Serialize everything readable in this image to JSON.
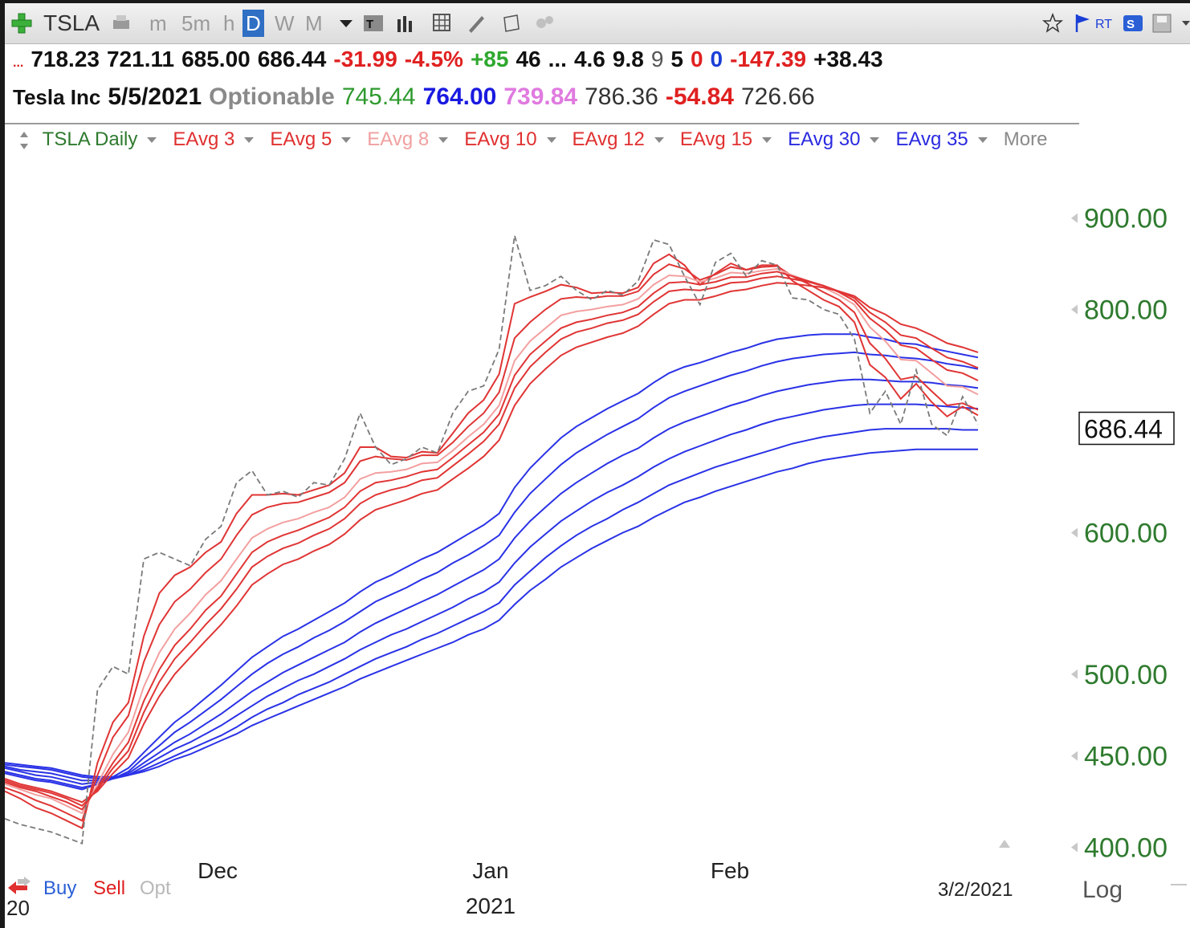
{
  "toolbar": {
    "symbol": "TSLA",
    "timeframes": [
      "m",
      "5m",
      "h",
      "D",
      "W",
      "M"
    ],
    "selected": "D",
    "rt_label": "RT"
  },
  "quote": {
    "row1": [
      {
        "text": "...",
        "color": "#d62020"
      },
      {
        "text": "718.23",
        "color": "#111111"
      },
      {
        "text": "721.11",
        "color": "#111111"
      },
      {
        "text": "685.00",
        "color": "#111111"
      },
      {
        "text": "686.44",
        "color": "#111111"
      },
      {
        "text": "-31.99",
        "color": "#e02020"
      },
      {
        "text": "-4.5%",
        "color": "#e02020"
      },
      {
        "text": "+85",
        "color": "#2ea82e"
      },
      {
        "text": "46",
        "color": "#111111"
      },
      {
        "text": "...",
        "color": "#111111"
      },
      {
        "text": "4.6",
        "color": "#111111"
      },
      {
        "text": "9.8",
        "color": "#111111"
      },
      {
        "text": "9",
        "color": "#555555"
      },
      {
        "text": "5",
        "color": "#111111"
      },
      {
        "text": "0",
        "color": "#e02020"
      },
      {
        "text": "0",
        "color": "#1a3fd6"
      },
      {
        "text": "-147.39",
        "color": "#e02020"
      },
      {
        "text": "+38.43",
        "color": "#111111"
      }
    ],
    "row2": [
      {
        "text": "Tesla Inc",
        "color": "#111111"
      },
      {
        "text": "5/5/2021",
        "color": "#111111"
      },
      {
        "text": "Optionable",
        "color": "#8a8a8a"
      },
      {
        "text": "745.44",
        "color": "#2e9a2e"
      },
      {
        "text": "764.00",
        "color": "#1a1ae0"
      },
      {
        "text": "739.84",
        "color": "#e07ae0"
      },
      {
        "text": "786.36",
        "color": "#333333"
      },
      {
        "text": "-54.84",
        "color": "#e02020"
      },
      {
        "text": "726.66",
        "color": "#333333"
      }
    ]
  },
  "indicators": [
    {
      "label": "TSLA Daily",
      "color": "#2e7a2e"
    },
    {
      "label": "EAvg 3",
      "color": "#e03030"
    },
    {
      "label": "EAvg 5",
      "color": "#e03030"
    },
    {
      "label": "EAvg 8",
      "color": "#f0a0a0"
    },
    {
      "label": "EAvg 10",
      "color": "#e03030"
    },
    {
      "label": "EAvg 12",
      "color": "#e03030"
    },
    {
      "label": "EAvg 15",
      "color": "#e03030"
    },
    {
      "label": "EAvg 30",
      "color": "#2a2ae0"
    },
    {
      "label": "EAvg 35",
      "color": "#2a2ae0"
    },
    {
      "label": "More",
      "color": "#8a8a8a"
    }
  ],
  "chart_data": {
    "type": "line",
    "scale": "log",
    "yticks": [
      "900.00",
      "800.00",
      "600.00",
      "500.00",
      "450.00",
      "400.00"
    ],
    "ylim": [
      390,
      930
    ],
    "last_price": "686.44",
    "x_labels": [
      "Dec",
      "Jan",
      "Feb"
    ],
    "year_label": "2021",
    "start_label": "20",
    "date_label": "3/2/2021",
    "scale_label": "Log",
    "close": [
      415,
      412,
      410,
      408,
      405,
      402,
      490,
      505,
      500,
      580,
      585,
      580,
      575,
      595,
      605,
      640,
      650,
      630,
      633,
      628,
      640,
      638,
      660,
      700,
      670,
      655,
      660,
      670,
      665,
      700,
      720,
      725,
      760,
      880,
      820,
      825,
      835,
      820,
      810,
      820,
      815,
      830,
      875,
      870,
      835,
      805,
      850,
      860,
      835,
      852,
      847,
      812,
      810,
      800,
      795,
      770,
      700,
      720,
      690,
      740,
      690,
      680,
      715,
      690
    ],
    "series": [
      {
        "name": "EAvg 3",
        "color": "#e03535",
        "values": [
          430,
          426,
          421,
          418,
          414,
          410,
          446,
          470,
          482,
          525,
          555,
          568,
          574,
          585,
          593,
          615,
          630,
          630,
          631,
          630,
          634,
          638,
          648,
          670,
          670,
          662,
          661,
          666,
          665,
          682,
          700,
          712,
          736,
          806,
          813,
          819,
          826,
          823,
          817,
          818,
          817,
          823,
          849,
          859,
          847,
          826,
          838,
          849,
          842,
          847,
          847,
          830,
          820,
          810,
          803,
          787,
          745,
          733,
          713,
          727,
          710,
          697,
          706,
          698
        ]
      },
      {
        "name": "EAvg 5",
        "color": "#e03535",
        "values": [
          432,
          429,
          425,
          422,
          418,
          414,
          439,
          461,
          474,
          508,
          533,
          549,
          558,
          570,
          580,
          598,
          614,
          620,
          623,
          624,
          628,
          632,
          640,
          658,
          662,
          660,
          659,
          663,
          663,
          674,
          688,
          700,
          719,
          771,
          787,
          800,
          811,
          813,
          812,
          814,
          814,
          819,
          837,
          848,
          843,
          831,
          837,
          845,
          842,
          845,
          846,
          835,
          827,
          818,
          810,
          797,
          766,
          751,
          731,
          734,
          720,
          707,
          709,
          703
        ]
      },
      {
        "name": "EAvg 8",
        "color": "#f3a0a0",
        "values": [
          434,
          431,
          428,
          426,
          422,
          418,
          434,
          451,
          464,
          492,
          514,
          530,
          541,
          554,
          564,
          580,
          596,
          603,
          608,
          611,
          616,
          620,
          628,
          643,
          648,
          649,
          651,
          656,
          657,
          667,
          679,
          690,
          707,
          749,
          768,
          781,
          794,
          798,
          800,
          803,
          805,
          811,
          826,
          836,
          835,
          829,
          833,
          839,
          838,
          841,
          843,
          836,
          830,
          823,
          815,
          805,
          782,
          768,
          750,
          749,
          737,
          725,
          724,
          717
        ]
      },
      {
        "name": "EAvg 10",
        "color": "#e03535",
        "values": [
          435,
          432,
          430,
          427,
          424,
          420,
          432,
          446,
          458,
          483,
          503,
          519,
          530,
          543,
          553,
          569,
          585,
          593,
          598,
          602,
          607,
          612,
          620,
          633,
          640,
          642,
          645,
          649,
          651,
          661,
          672,
          683,
          699,
          735,
          755,
          768,
          781,
          787,
          790,
          794,
          797,
          803,
          817,
          828,
          829,
          826,
          829,
          834,
          834,
          838,
          840,
          835,
          830,
          825,
          818,
          809,
          791,
          779,
          764,
          761,
          750,
          740,
          737,
          730
        ]
      },
      {
        "name": "EAvg 12",
        "color": "#e03535",
        "values": [
          436,
          433,
          431,
          429,
          426,
          422,
          431,
          443,
          453,
          476,
          495,
          510,
          521,
          533,
          544,
          558,
          574,
          582,
          588,
          592,
          598,
          603,
          611,
          623,
          630,
          634,
          637,
          642,
          644,
          654,
          664,
          675,
          690,
          723,
          743,
          757,
          770,
          777,
          781,
          786,
          789,
          795,
          808,
          819,
          821,
          820,
          823,
          828,
          829,
          833,
          835,
          832,
          829,
          825,
          819,
          812,
          797,
          787,
          774,
          771,
          761,
          752,
          748,
          742
        ]
      },
      {
        "name": "EAvg 15",
        "color": "#e03535",
        "values": [
          437,
          434,
          432,
          430,
          427,
          424,
          430,
          440,
          449,
          469,
          486,
          500,
          511,
          522,
          533,
          546,
          561,
          569,
          576,
          580,
          586,
          591,
          599,
          610,
          618,
          622,
          626,
          631,
          634,
          643,
          652,
          662,
          676,
          707,
          727,
          741,
          754,
          762,
          767,
          772,
          776,
          783,
          795,
          806,
          810,
          810,
          814,
          819,
          821,
          825,
          828,
          827,
          825,
          823,
          819,
          814,
          802,
          795,
          785,
          781,
          774,
          766,
          762,
          757
        ]
      },
      {
        "name": "EAvg 30",
        "color": "#2a32e6",
        "values": [
          440,
          438,
          436,
          435,
          433,
          431,
          434,
          438,
          443,
          452,
          461,
          470,
          477,
          485,
          493,
          502,
          511,
          518,
          525,
          530,
          536,
          542,
          548,
          556,
          563,
          568,
          574,
          580,
          585,
          592,
          599,
          606,
          615,
          636,
          652,
          665,
          678,
          688,
          696,
          704,
          711,
          718,
          728,
          737,
          743,
          747,
          752,
          757,
          761,
          766,
          770,
          772,
          774,
          775,
          775,
          775,
          772,
          770,
          766,
          765,
          761,
          758,
          755,
          752
        ]
      },
      {
        "name": "EAvg 35",
        "color": "#2a32e6",
        "values": [
          441,
          439,
          437,
          436,
          434,
          432,
          434,
          437,
          441,
          449,
          456,
          464,
          470,
          477,
          484,
          492,
          500,
          507,
          513,
          518,
          524,
          529,
          535,
          542,
          549,
          554,
          559,
          565,
          570,
          577,
          583,
          590,
          598,
          616,
          631,
          643,
          655,
          665,
          673,
          681,
          688,
          695,
          705,
          714,
          720,
          725,
          730,
          735,
          739,
          744,
          748,
          751,
          753,
          755,
          756,
          757,
          755,
          754,
          752,
          751,
          749,
          746,
          744,
          741
        ]
      },
      {
        "name": "",
        "color": "#2a32e6",
        "values": [
          443,
          441,
          439,
          438,
          436,
          434,
          435,
          437,
          440,
          446,
          452,
          458,
          463,
          469,
          475,
          482,
          489,
          495,
          501,
          506,
          511,
          516,
          521,
          528,
          534,
          539,
          544,
          549,
          554,
          560,
          566,
          572,
          580,
          596,
          609,
          620,
          631,
          640,
          648,
          656,
          663,
          669,
          678,
          686,
          692,
          697,
          702,
          707,
          711,
          716,
          720,
          723,
          726,
          728,
          730,
          731,
          731,
          730,
          729,
          729,
          728,
          726,
          725,
          723
        ]
      },
      {
        "name": "",
        "color": "#2a32e6",
        "values": [
          444,
          442,
          441,
          440,
          438,
          436,
          436,
          437,
          439,
          444,
          449,
          454,
          458,
          463,
          468,
          474,
          480,
          486,
          491,
          496,
          500,
          505,
          510,
          516,
          521,
          526,
          530,
          535,
          540,
          545,
          551,
          556,
          563,
          577,
          589,
          599,
          609,
          617,
          625,
          632,
          638,
          645,
          653,
          660,
          666,
          671,
          676,
          681,
          685,
          690,
          694,
          697,
          700,
          703,
          705,
          707,
          708,
          708,
          708,
          708,
          707,
          706,
          705,
          704
        ]
      },
      {
        "name": "",
        "color": "#2a32e6",
        "values": [
          445,
          444,
          443,
          442,
          440,
          438,
          437,
          437,
          439,
          442,
          446,
          450,
          454,
          458,
          462,
          467,
          473,
          478,
          482,
          487,
          491,
          495,
          500,
          505,
          510,
          514,
          518,
          523,
          527,
          532,
          537,
          542,
          548,
          561,
          571,
          581,
          590,
          598,
          605,
          611,
          618,
          624,
          631,
          638,
          643,
          648,
          653,
          657,
          661,
          665,
          669,
          673,
          676,
          679,
          681,
          683,
          685,
          686,
          686,
          686,
          686,
          686,
          685,
          685
        ]
      },
      {
        "name": "",
        "color": "#2a32e6",
        "values": [
          446,
          445,
          444,
          443,
          441,
          439,
          438,
          438,
          439,
          441,
          444,
          448,
          451,
          455,
          459,
          463,
          468,
          472,
          476,
          480,
          484,
          488,
          492,
          497,
          501,
          505,
          509,
          513,
          517,
          521,
          526,
          530,
          536,
          547,
          557,
          565,
          574,
          581,
          588,
          594,
          600,
          605,
          612,
          618,
          624,
          628,
          633,
          637,
          641,
          645,
          649,
          652,
          656,
          659,
          661,
          663,
          665,
          666,
          667,
          668,
          668,
          668,
          668,
          668
        ]
      }
    ]
  }
}
